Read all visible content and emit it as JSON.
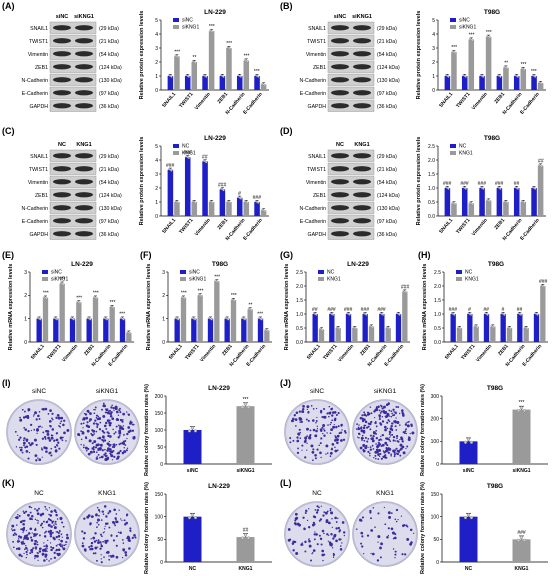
{
  "colors": {
    "ctrl": "#1f1fc8",
    "treat": "#9a9a9a",
    "dot": "#d0d0d0",
    "plate": "#dcdcec",
    "colony": "#3b2c9e"
  },
  "panels": {
    "A": {
      "label": "(A)",
      "cells": "LN-229",
      "lanes": [
        "siNC",
        "siKNG1"
      ]
    },
    "B": {
      "label": "(B)",
      "cells": "T98G",
      "lanes": [
        "siNC",
        "siKNG1"
      ]
    },
    "C": {
      "label": "(C)",
      "cells": "LN-229",
      "lanes": [
        "NC",
        "KNG1"
      ]
    },
    "D": {
      "label": "(D)",
      "cells": "T98G",
      "lanes": [
        "NC",
        "KNG1"
      ]
    },
    "E": {
      "label": "(E)"
    },
    "F": {
      "label": "(F)"
    },
    "G": {
      "label": "(G)"
    },
    "H": {
      "label": "(H)"
    },
    "I": {
      "label": "(I)"
    },
    "J": {
      "label": "(J)"
    },
    "K": {
      "label": "(K)"
    },
    "L": {
      "label": "(L)"
    }
  },
  "blot_rows": [
    {
      "name": "SNAIL1",
      "kda": "(29 kDa)"
    },
    {
      "name": "TWIST1",
      "kda": "(21 kDa)"
    },
    {
      "name": "Vimentin",
      "kda": "(54 kDa)"
    },
    {
      "name": "ZEB1",
      "kda": "(124 kDa)"
    },
    {
      "name": "N-Cadherin",
      "kda": "(130 kDa)"
    },
    {
      "name": "E-Cadherin",
      "kda": "(97 kDa)"
    },
    {
      "name": "GAPDH",
      "kda": "(36 kDa)"
    }
  ],
  "chart_data": [
    {
      "id": "A",
      "type": "bar",
      "title": "LN-229",
      "ylabel": "Relative protein expression levels",
      "ylim": [
        0,
        5
      ],
      "yticks": [
        0,
        1,
        2,
        3,
        4,
        5
      ],
      "categories": [
        "SNAIL1",
        "TWIST1",
        "Vimentin",
        "ZEB1",
        "N-Cadherin",
        "E-Cadherin"
      ],
      "series": [
        {
          "name": "siNC",
          "values": [
            1,
            1,
            1,
            1,
            1,
            1
          ]
        },
        {
          "name": "siKNG1",
          "values": [
            2.4,
            2.0,
            4.2,
            3.0,
            2.1,
            0.4
          ]
        }
      ],
      "sig": [
        "***",
        "**",
        "***",
        "***",
        "***",
        "***"
      ]
    },
    {
      "id": "B",
      "type": "bar",
      "title": "T98G",
      "ylabel": "Relative protein expression levels",
      "ylim": [
        0,
        5
      ],
      "yticks": [
        0,
        1,
        2,
        3,
        4,
        5
      ],
      "categories": [
        "SNAIL1",
        "TWIST1",
        "Vimentin",
        "ZEB1",
        "N-Cadherin",
        "E-Cadherin"
      ],
      "series": [
        {
          "name": "siNC",
          "values": [
            1,
            1,
            1,
            1,
            1,
            1
          ]
        },
        {
          "name": "siKNG1",
          "values": [
            2.7,
            3.6,
            3.8,
            1.6,
            1.5,
            0.5
          ]
        }
      ],
      "sig": [
        "***",
        "***",
        "***",
        "**",
        "***",
        "***"
      ]
    },
    {
      "id": "C",
      "type": "bar",
      "title": "LN-229",
      "ylabel": "Relative protein expression levels",
      "ylim": [
        0,
        5
      ],
      "yticks": [
        0,
        1,
        2,
        3,
        4,
        5
      ],
      "categories": [
        "SNAIL1",
        "TWIST1",
        "Vimentin",
        "ZEB1",
        "N-Cadherin",
        "E-Cadherin"
      ],
      "series": [
        {
          "name": "NC",
          "values": [
            3.3,
            4.2,
            3.9,
            1.9,
            1.3,
            1.0
          ]
        },
        {
          "name": "KNG1",
          "values": [
            1.0,
            1.0,
            1.0,
            1.0,
            1.0,
            0.4
          ]
        }
      ],
      "sig": [
        "###",
        "###",
        "##",
        "###",
        "#",
        "###"
      ]
    },
    {
      "id": "D",
      "type": "bar",
      "title": "T98G",
      "ylabel": "Relative protein expression levels",
      "ylim": [
        0,
        2.5
      ],
      "yticks": [
        0.0,
        0.5,
        1.0,
        1.5,
        2.0,
        2.5
      ],
      "categories": [
        "SNAIL1",
        "TWIST1",
        "Vimentin",
        "ZEB1",
        "N-Cadherin",
        "E-Cadherin"
      ],
      "series": [
        {
          "name": "NC",
          "values": [
            1,
            1,
            1,
            1,
            1,
            1
          ]
        },
        {
          "name": "KNG1",
          "values": [
            0.45,
            0.45,
            0.55,
            0.5,
            0.5,
            1.8
          ]
        }
      ],
      "sig": [
        "###",
        "###",
        "###",
        "###",
        "##",
        "##"
      ]
    },
    {
      "id": "E",
      "type": "bar",
      "title": "LN-229",
      "ylabel": "Relative mRNA expression levels",
      "ylim": [
        0,
        3
      ],
      "yticks": [
        0,
        1,
        2,
        3
      ],
      "categories": [
        "SNAIL1",
        "TWIST1",
        "Vimentin",
        "ZEB1",
        "N-Cadherin",
        "E-Cadherin"
      ],
      "series": [
        {
          "name": "siNC",
          "values": [
            1,
            1,
            1,
            1,
            1,
            1
          ]
        },
        {
          "name": "siKNG1",
          "values": [
            1.9,
            2.5,
            1.7,
            1.9,
            1.5,
            0.4
          ]
        }
      ],
      "sig": [
        "***",
        "***",
        "***",
        "***",
        "***",
        "***"
      ]
    },
    {
      "id": "F",
      "type": "bar",
      "title": "T98G",
      "ylabel": "Relative mRNA expression levels",
      "ylim": [
        0,
        3
      ],
      "yticks": [
        0,
        1,
        2,
        3
      ],
      "categories": [
        "SNAIL1",
        "TWIST1",
        "Vimentin",
        "ZEB1",
        "N-Cadherin",
        "E-Cadherin"
      ],
      "series": [
        {
          "name": "siNC",
          "values": [
            1,
            1,
            1,
            1,
            1,
            1
          ]
        },
        {
          "name": "siKNG1",
          "values": [
            1.9,
            2.0,
            2.6,
            1.8,
            1.4,
            0.5
          ]
        }
      ],
      "sig": [
        "***",
        "***",
        "***",
        "***",
        "**",
        "***"
      ]
    },
    {
      "id": "G",
      "type": "bar",
      "title": "LN-229",
      "ylabel": "Relative mRNA expression levels",
      "ylim": [
        0,
        2.5
      ],
      "yticks": [
        0.0,
        0.5,
        1.0,
        1.5,
        2.0,
        2.5
      ],
      "categories": [
        "SNAIL1",
        "TWIST1",
        "Vimentin",
        "ZEB1",
        "N-Cadherin",
        "E-Cadherin"
      ],
      "series": [
        {
          "name": "NC",
          "values": [
            1,
            1,
            1,
            1,
            1,
            1
          ]
        },
        {
          "name": "KNG1",
          "values": [
            0.45,
            0.5,
            0.5,
            0.55,
            0.5,
            1.8
          ]
        }
      ],
      "sig": [
        "##",
        "###",
        "###",
        "###",
        "###",
        "###"
      ]
    },
    {
      "id": "H",
      "type": "bar",
      "title": "T98G",
      "ylabel": "Relative mRNA expression levels",
      "ylim": [
        0,
        2.5
      ],
      "yticks": [
        0.0,
        0.5,
        1.0,
        1.5,
        2.0,
        2.5
      ],
      "categories": [
        "SNAIL1",
        "TWIST1",
        "Vimentin",
        "ZEB1",
        "N-Cadherin",
        "E-Cadherin"
      ],
      "series": [
        {
          "name": "NC",
          "values": [
            1,
            1,
            1,
            1,
            1,
            1
          ]
        },
        {
          "name": "KNG1",
          "values": [
            0.5,
            0.55,
            0.55,
            0.5,
            0.5,
            2.0
          ]
        }
      ],
      "sig": [
        "###",
        "#",
        "##",
        "#",
        "##",
        "###"
      ]
    },
    {
      "id": "I",
      "type": "bar",
      "title": "LN-229",
      "ylabel": "Relative colony formation rates (%)",
      "ylim": [
        0,
        200
      ],
      "yticks": [
        0,
        50,
        100,
        150,
        200
      ],
      "categories": [
        "siNC",
        "siKNG1"
      ],
      "values": [
        100,
        170
      ],
      "sig": [
        "",
        "***"
      ]
    },
    {
      "id": "J",
      "type": "bar",
      "title": "T98G",
      "ylabel": "Relative colony formation rates (%)",
      "ylim": [
        0,
        300
      ],
      "yticks": [
        0,
        100,
        200,
        300
      ],
      "categories": [
        "siNC",
        "siKNG1"
      ],
      "values": [
        100,
        240
      ],
      "sig": [
        "",
        "***"
      ]
    },
    {
      "id": "K",
      "type": "bar",
      "title": "LN-229",
      "ylabel": "Relative colony formation rates (%)",
      "ylim": [
        0,
        150
      ],
      "yticks": [
        0,
        50,
        100,
        150
      ],
      "categories": [
        "NC",
        "KNG1"
      ],
      "values": [
        100,
        55
      ],
      "sig": [
        "",
        "##"
      ]
    },
    {
      "id": "L",
      "type": "bar",
      "title": "T98G",
      "ylabel": "Relative colony formation rates (%)",
      "ylim": [
        0,
        150
      ],
      "yticks": [
        0,
        50,
        100,
        150
      ],
      "categories": [
        "NC",
        "KNG1"
      ],
      "values": [
        100,
        50
      ],
      "sig": [
        "",
        "###"
      ]
    }
  ],
  "plates": {
    "I": [
      "siNC",
      "siKNG1"
    ],
    "J": [
      "siNC",
      "siKNG1"
    ],
    "K": [
      "NC",
      "KNG1"
    ],
    "L": [
      "NC",
      "KNG1"
    ]
  }
}
